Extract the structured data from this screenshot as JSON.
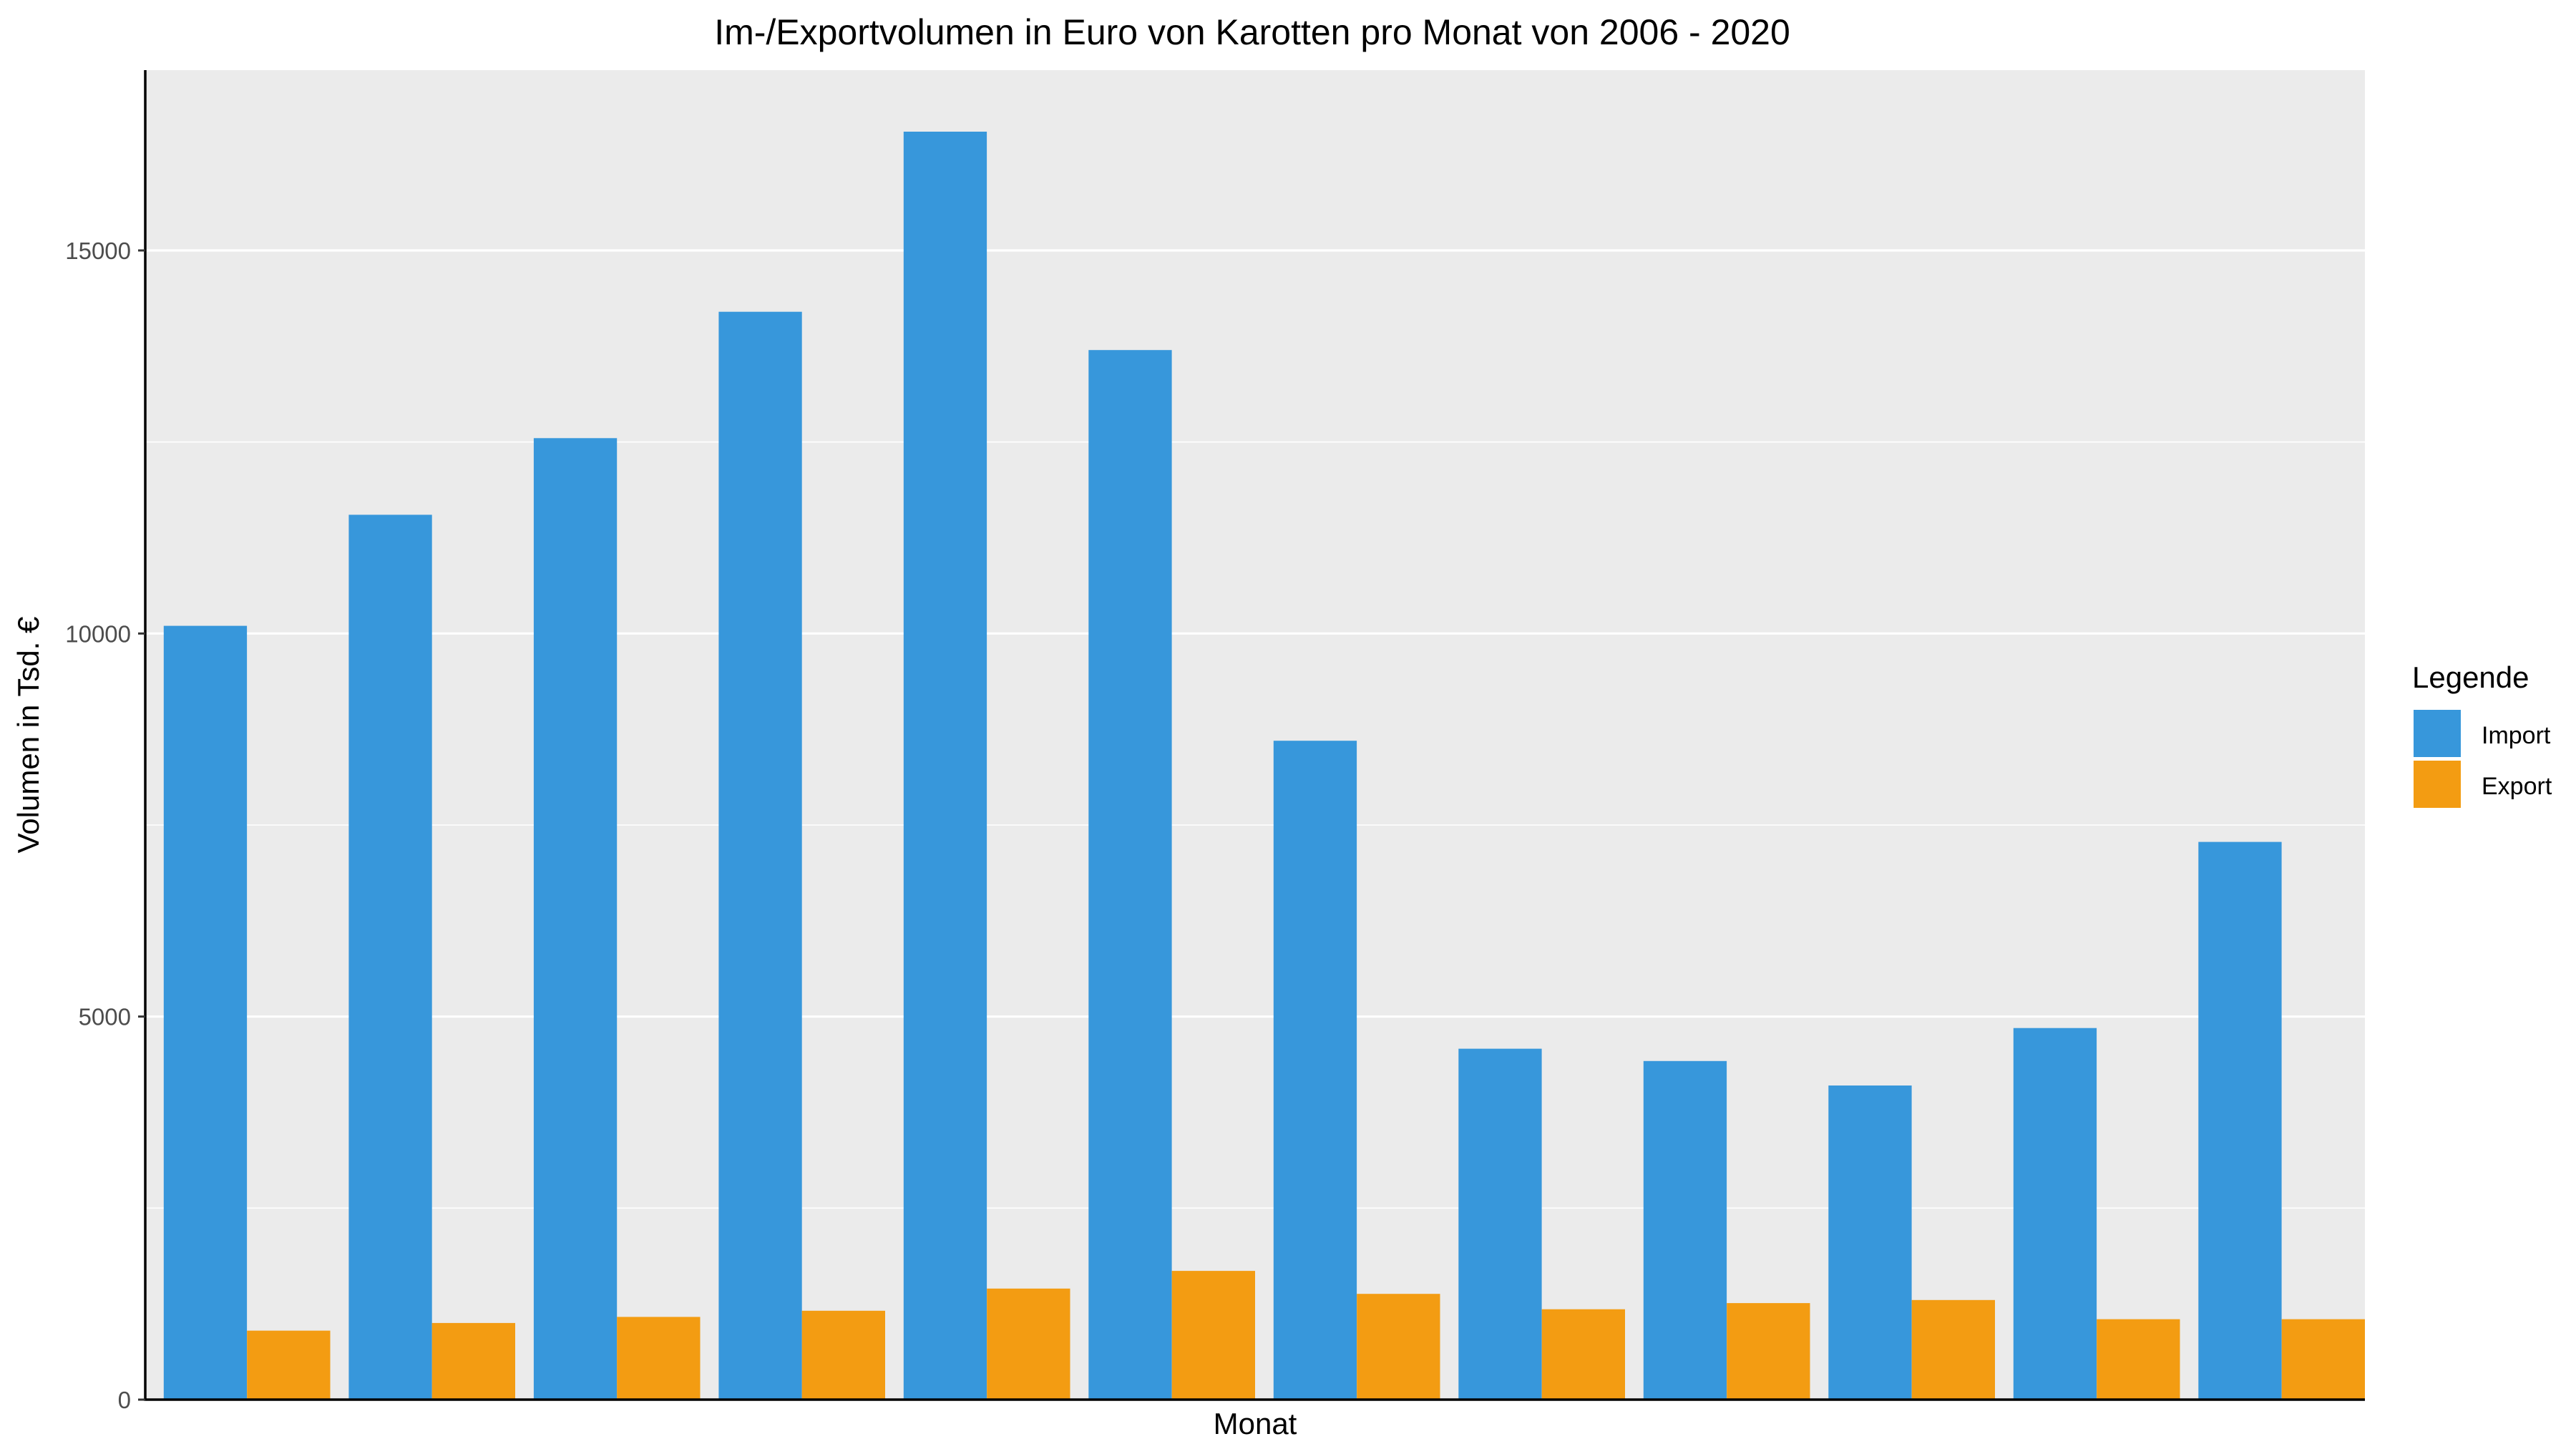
{
  "chart_data": {
    "type": "bar",
    "title": "Im-/Exportvolumen in Euro von Karotten pro Monat von 2006 - 2020",
    "xlabel": "Monat",
    "ylabel": "Volumen in Tsd. €",
    "ylim": [
      0,
      17000
    ],
    "y_ticks": [
      0,
      5000,
      10000,
      15000
    ],
    "y_tick_labels": [
      "0",
      "5000",
      "10000",
      "15000"
    ],
    "grid": true,
    "categories": [
      "",
      "",
      "",
      "",
      "",
      "",
      "",
      "",
      "",
      "",
      "",
      ""
    ],
    "series": [
      {
        "name": "Import",
        "color": "#3797db",
        "values": [
          10100,
          11550,
          12550,
          14200,
          16550,
          13700,
          8600,
          4580,
          4420,
          4100,
          4850,
          7280
        ]
      },
      {
        "name": "Export",
        "color": "#f39c12",
        "values": [
          900,
          1000,
          1080,
          1160,
          1450,
          1680,
          1380,
          1180,
          1260,
          1300,
          1050,
          1050
        ]
      }
    ],
    "legend": {
      "title": "Legende",
      "position": "right"
    }
  }
}
